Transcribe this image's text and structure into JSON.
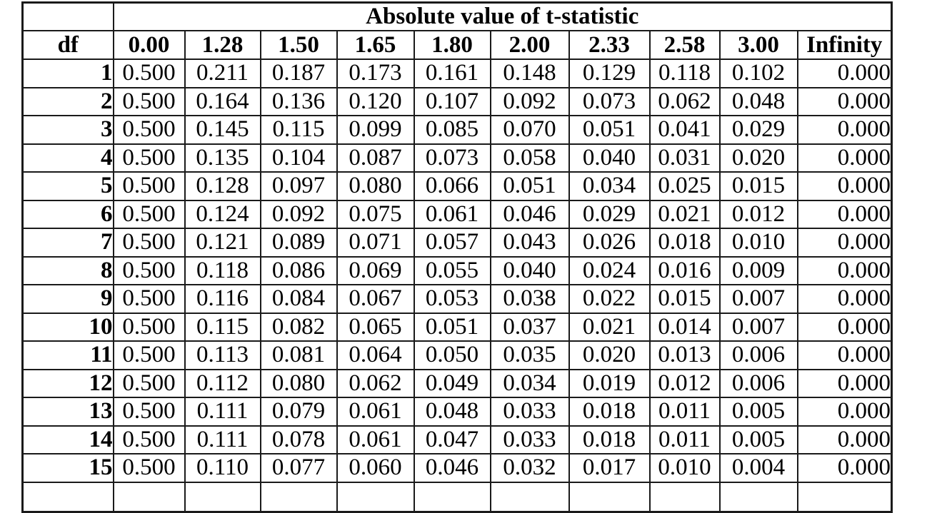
{
  "table": {
    "title": "Absolute value of t-statistic",
    "corner_label": "df",
    "column_headers": [
      "0.00",
      "1.28",
      "1.50",
      "1.65",
      "1.80",
      "2.00",
      "2.33",
      "2.58",
      "3.00",
      "Infinity"
    ],
    "rows": [
      {
        "df": "1",
        "values": [
          "0.500",
          "0.211",
          "0.187",
          "0.173",
          "0.161",
          "0.148",
          "0.129",
          "0.118",
          "0.102",
          "0.000"
        ]
      },
      {
        "df": "2",
        "values": [
          "0.500",
          "0.164",
          "0.136",
          "0.120",
          "0.107",
          "0.092",
          "0.073",
          "0.062",
          "0.048",
          "0.000"
        ]
      },
      {
        "df": "3",
        "values": [
          "0.500",
          "0.145",
          "0.115",
          "0.099",
          "0.085",
          "0.070",
          "0.051",
          "0.041",
          "0.029",
          "0.000"
        ]
      },
      {
        "df": "4",
        "values": [
          "0.500",
          "0.135",
          "0.104",
          "0.087",
          "0.073",
          "0.058",
          "0.040",
          "0.031",
          "0.020",
          "0.000"
        ]
      },
      {
        "df": "5",
        "values": [
          "0.500",
          "0.128",
          "0.097",
          "0.080",
          "0.066",
          "0.051",
          "0.034",
          "0.025",
          "0.015",
          "0.000"
        ]
      },
      {
        "df": "6",
        "values": [
          "0.500",
          "0.124",
          "0.092",
          "0.075",
          "0.061",
          "0.046",
          "0.029",
          "0.021",
          "0.012",
          "0.000"
        ]
      },
      {
        "df": "7",
        "values": [
          "0.500",
          "0.121",
          "0.089",
          "0.071",
          "0.057",
          "0.043",
          "0.026",
          "0.018",
          "0.010",
          "0.000"
        ]
      },
      {
        "df": "8",
        "values": [
          "0.500",
          "0.118",
          "0.086",
          "0.069",
          "0.055",
          "0.040",
          "0.024",
          "0.016",
          "0.009",
          "0.000"
        ]
      },
      {
        "df": "9",
        "values": [
          "0.500",
          "0.116",
          "0.084",
          "0.067",
          "0.053",
          "0.038",
          "0.022",
          "0.015",
          "0.007",
          "0.000"
        ]
      },
      {
        "df": "10",
        "values": [
          "0.500",
          "0.115",
          "0.082",
          "0.065",
          "0.051",
          "0.037",
          "0.021",
          "0.014",
          "0.007",
          "0.000"
        ]
      },
      {
        "df": "11",
        "values": [
          "0.500",
          "0.113",
          "0.081",
          "0.064",
          "0.050",
          "0.035",
          "0.020",
          "0.013",
          "0.006",
          "0.000"
        ]
      },
      {
        "df": "12",
        "values": [
          "0.500",
          "0.112",
          "0.080",
          "0.062",
          "0.049",
          "0.034",
          "0.019",
          "0.012",
          "0.006",
          "0.000"
        ]
      },
      {
        "df": "13",
        "values": [
          "0.500",
          "0.111",
          "0.079",
          "0.061",
          "0.048",
          "0.033",
          "0.018",
          "0.011",
          "0.005",
          "0.000"
        ]
      },
      {
        "df": "14",
        "values": [
          "0.500",
          "0.111",
          "0.078",
          "0.061",
          "0.047",
          "0.033",
          "0.018",
          "0.011",
          "0.005",
          "0.000"
        ]
      },
      {
        "df": "15",
        "values": [
          "0.500",
          "0.110",
          "0.077",
          "0.060",
          "0.046",
          "0.032",
          "0.017",
          "0.010",
          "0.004",
          "0.000"
        ]
      }
    ],
    "colors": {
      "border": "#1a1a1a",
      "text": "#000000",
      "background": "#ffffff"
    }
  }
}
